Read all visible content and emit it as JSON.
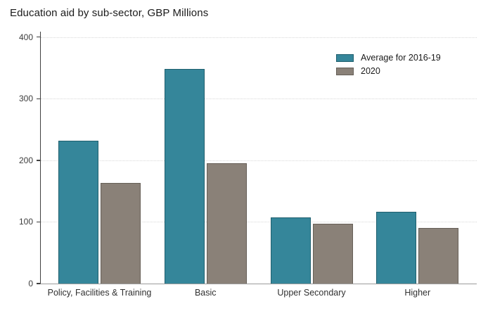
{
  "chart_data": {
    "type": "bar",
    "title": "Education aid by sub-sector, GBP Millions",
    "xlabel": "",
    "ylabel": "",
    "categories": [
      "Policy, Facilities & Training",
      "Basic",
      "Upper Secondary",
      "Higher"
    ],
    "series": [
      {
        "name": "Average for 2016-19",
        "color": "#35869a",
        "border_color": "#1f5f6e",
        "values": [
          232,
          348,
          107,
          116
        ]
      },
      {
        "name": "2020",
        "color": "#8a8178",
        "border_color": "#665f57",
        "values": [
          163,
          195,
          97,
          90
        ]
      }
    ],
    "ylim": [
      0,
      400
    ],
    "yticks": [
      0,
      100,
      200,
      300,
      400
    ],
    "grid": "horizontal-dotted",
    "legend_position": "top-right"
  }
}
